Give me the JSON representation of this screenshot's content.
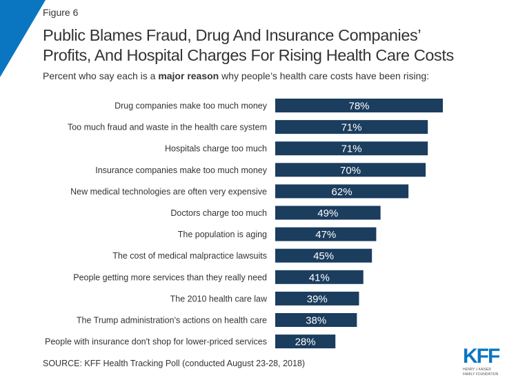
{
  "figure_label": "Figure 6",
  "title_line1": "Public Blames Fraud, Drug And Insurance Companies’",
  "title_line2": "Profits, And Hospital Charges For Rising Health Care Costs",
  "subtitle_pre": "Percent who say each is a ",
  "subtitle_bold": "major reason",
  "subtitle_post": " why people’s health care costs have been rising:",
  "source": "SOURCE: KFF Health Tracking Poll (conducted August 23-28, 2018)",
  "logo": {
    "mark": "KFF",
    "line1": "HENRY J KAISER",
    "line2": "FAMILY FOUNDATION"
  },
  "colors": {
    "bar": "#1b3d5e",
    "accent": "#0a76c2"
  },
  "chart_data": {
    "type": "bar",
    "orientation": "horizontal",
    "title": "Percent who say each is a major reason why people’s health care costs have been rising",
    "categories": [
      "Drug companies make too much money",
      "Too much fraud and waste in the health care system",
      "Hospitals charge too much",
      "Insurance companies make too much money",
      "New medical technologies are often very expensive",
      "Doctors charge too much",
      "The population is aging",
      "The cost of medical malpractice lawsuits",
      "People getting more services than they really need",
      "The 2010 health care law",
      "The Trump administration's actions on health care",
      "People with insurance don't shop for lower-priced services"
    ],
    "values": [
      78,
      71,
      71,
      70,
      62,
      49,
      47,
      45,
      41,
      39,
      38,
      28
    ],
    "value_labels": [
      "78%",
      "71%",
      "71%",
      "70%",
      "62%",
      "49%",
      "47%",
      "45%",
      "41%",
      "39%",
      "38%",
      "28%"
    ],
    "xlim": [
      0,
      100
    ],
    "grid": false,
    "legend": "none"
  }
}
